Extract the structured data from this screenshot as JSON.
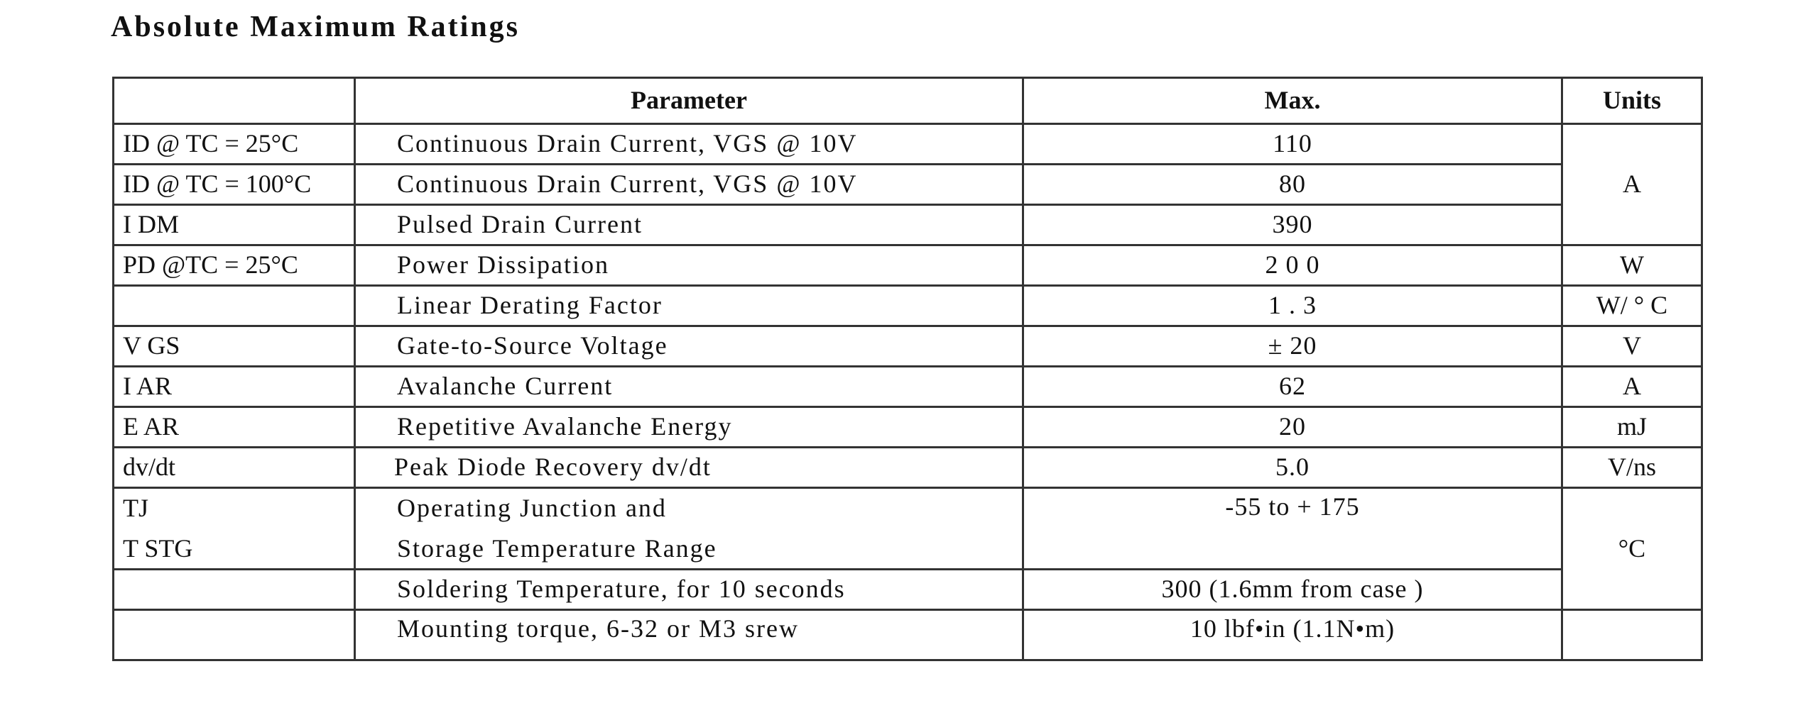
{
  "title": "Absolute Maximum Ratings",
  "columns": [
    "",
    "Parameter",
    "Max.",
    "Units"
  ],
  "rows": [
    {
      "symbol": "ID @ TC = 25°C",
      "parameter": "Continuous Drain Current, VGS @ 10V",
      "max": "110"
    },
    {
      "symbol": "ID @ TC = 100°C",
      "parameter": "Continuous Drain Current, VGS @ 10V",
      "max": "80"
    },
    {
      "symbol": "I DM",
      "parameter": "Pulsed Drain Current",
      "max": "390"
    },
    {
      "symbol": "PD @TC = 25°C",
      "parameter": "Power Dissipation",
      "max": "2 0 0",
      "unit": "W"
    },
    {
      "symbol": "",
      "parameter": "Linear Derating Factor",
      "max": "1 . 3",
      "unit": "W/ ° C"
    },
    {
      "symbol": "V GS",
      "parameter": "Gate-to-Source Voltage",
      "max": "± 20",
      "unit": "V"
    },
    {
      "symbol": "I AR",
      "parameter": "Avalanche Current",
      "max": "62",
      "unit": "A"
    },
    {
      "symbol": "E AR",
      "parameter": "Repetitive Avalanche Energy",
      "max": "20",
      "unit": "mJ"
    },
    {
      "symbol": "dv/dt",
      "parameter": "Peak Diode Recovery dv/dt",
      "max": "5.0",
      "unit": "V/ns"
    },
    {
      "symbol": "TJ",
      "symbol2": "T STG",
      "parameter": "Operating Junction and",
      "parameter2": "Storage Temperature Range",
      "max": "-55 to + 175"
    },
    {
      "symbol": "",
      "parameter": "Soldering Temperature, for 10 seconds",
      "max": "300 (1.6mm from case )"
    },
    {
      "symbol": "",
      "parameter": "Mounting torque, 6-32 or M3 srew",
      "max": "10 lbf•in (1.1N•m)"
    }
  ],
  "merged_units": {
    "current": "A",
    "temperature": "°C"
  }
}
